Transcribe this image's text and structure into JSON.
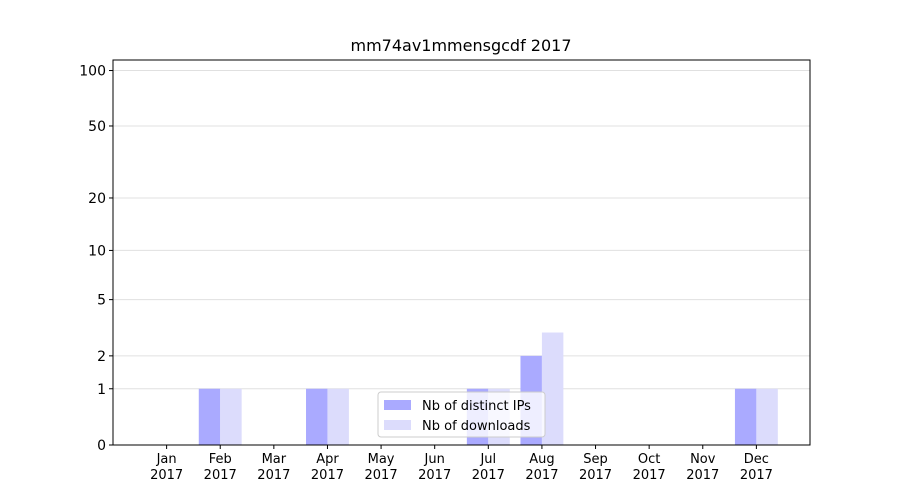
{
  "chart_data": {
    "type": "bar",
    "title": "mm74av1mmensgcdf 2017",
    "categories": [
      "Jan\n2017",
      "Feb\n2017",
      "Mar\n2017",
      "Apr\n2017",
      "May\n2017",
      "Jun\n2017",
      "Jul\n2017",
      "Aug\n2017",
      "Sep\n2017",
      "Oct\n2017",
      "Nov\n2017",
      "Dec\n2017"
    ],
    "series": [
      {
        "name": "Nb of distinct IPs",
        "color": "#aaaaff",
        "values": [
          0,
          1,
          0,
          1,
          0,
          0,
          1,
          2,
          0,
          0,
          0,
          1
        ]
      },
      {
        "name": "Nb of downloads",
        "color": "#dcdcfc",
        "values": [
          0,
          1,
          0,
          1,
          0,
          0,
          1,
          3,
          0,
          0,
          0,
          1
        ]
      }
    ],
    "yscale": "log1p",
    "ylim": [
      0,
      114
    ],
    "yticks": [
      0,
      1,
      2,
      5,
      10,
      20,
      50,
      100
    ],
    "grid": true,
    "legend": "lower center"
  }
}
